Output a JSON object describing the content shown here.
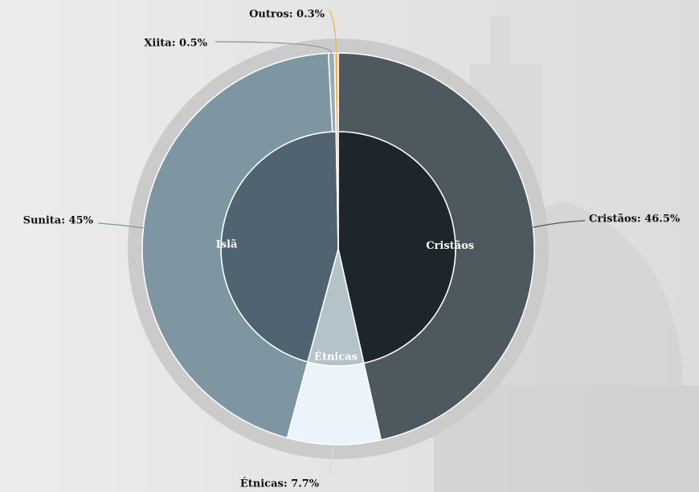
{
  "chart_data": {
    "type": "sunburst",
    "rings": [
      {
        "categories": [
          "Cristãos",
          "Étnicas",
          "Islã",
          null
        ],
        "values": [
          46.5,
          7.7,
          45.5,
          0.3
        ],
        "colors": [
          "#1c262b",
          "#b4c2ca",
          "#4f6470",
          "#f5b44a"
        ]
      },
      {
        "values": [
          46.5,
          7.7,
          45,
          0.5,
          0.3
        ],
        "value_labels": [
          "Cristãos: 46.5%",
          "Étnicas: 7.7%",
          "Sunita: 45%",
          "Xiita: 0.5%",
          "Outros: 0.3%"
        ],
        "colors": [
          "#4d585f",
          "#eaf4fa",
          "#7e95a2",
          "#9aabb5",
          "#f5b44a"
        ],
        "leader_colors": [
          "#4d585f",
          "#c9dbe6",
          "#7e95a2",
          "#7e95a2",
          "#f5b44a"
        ]
      }
    ]
  }
}
